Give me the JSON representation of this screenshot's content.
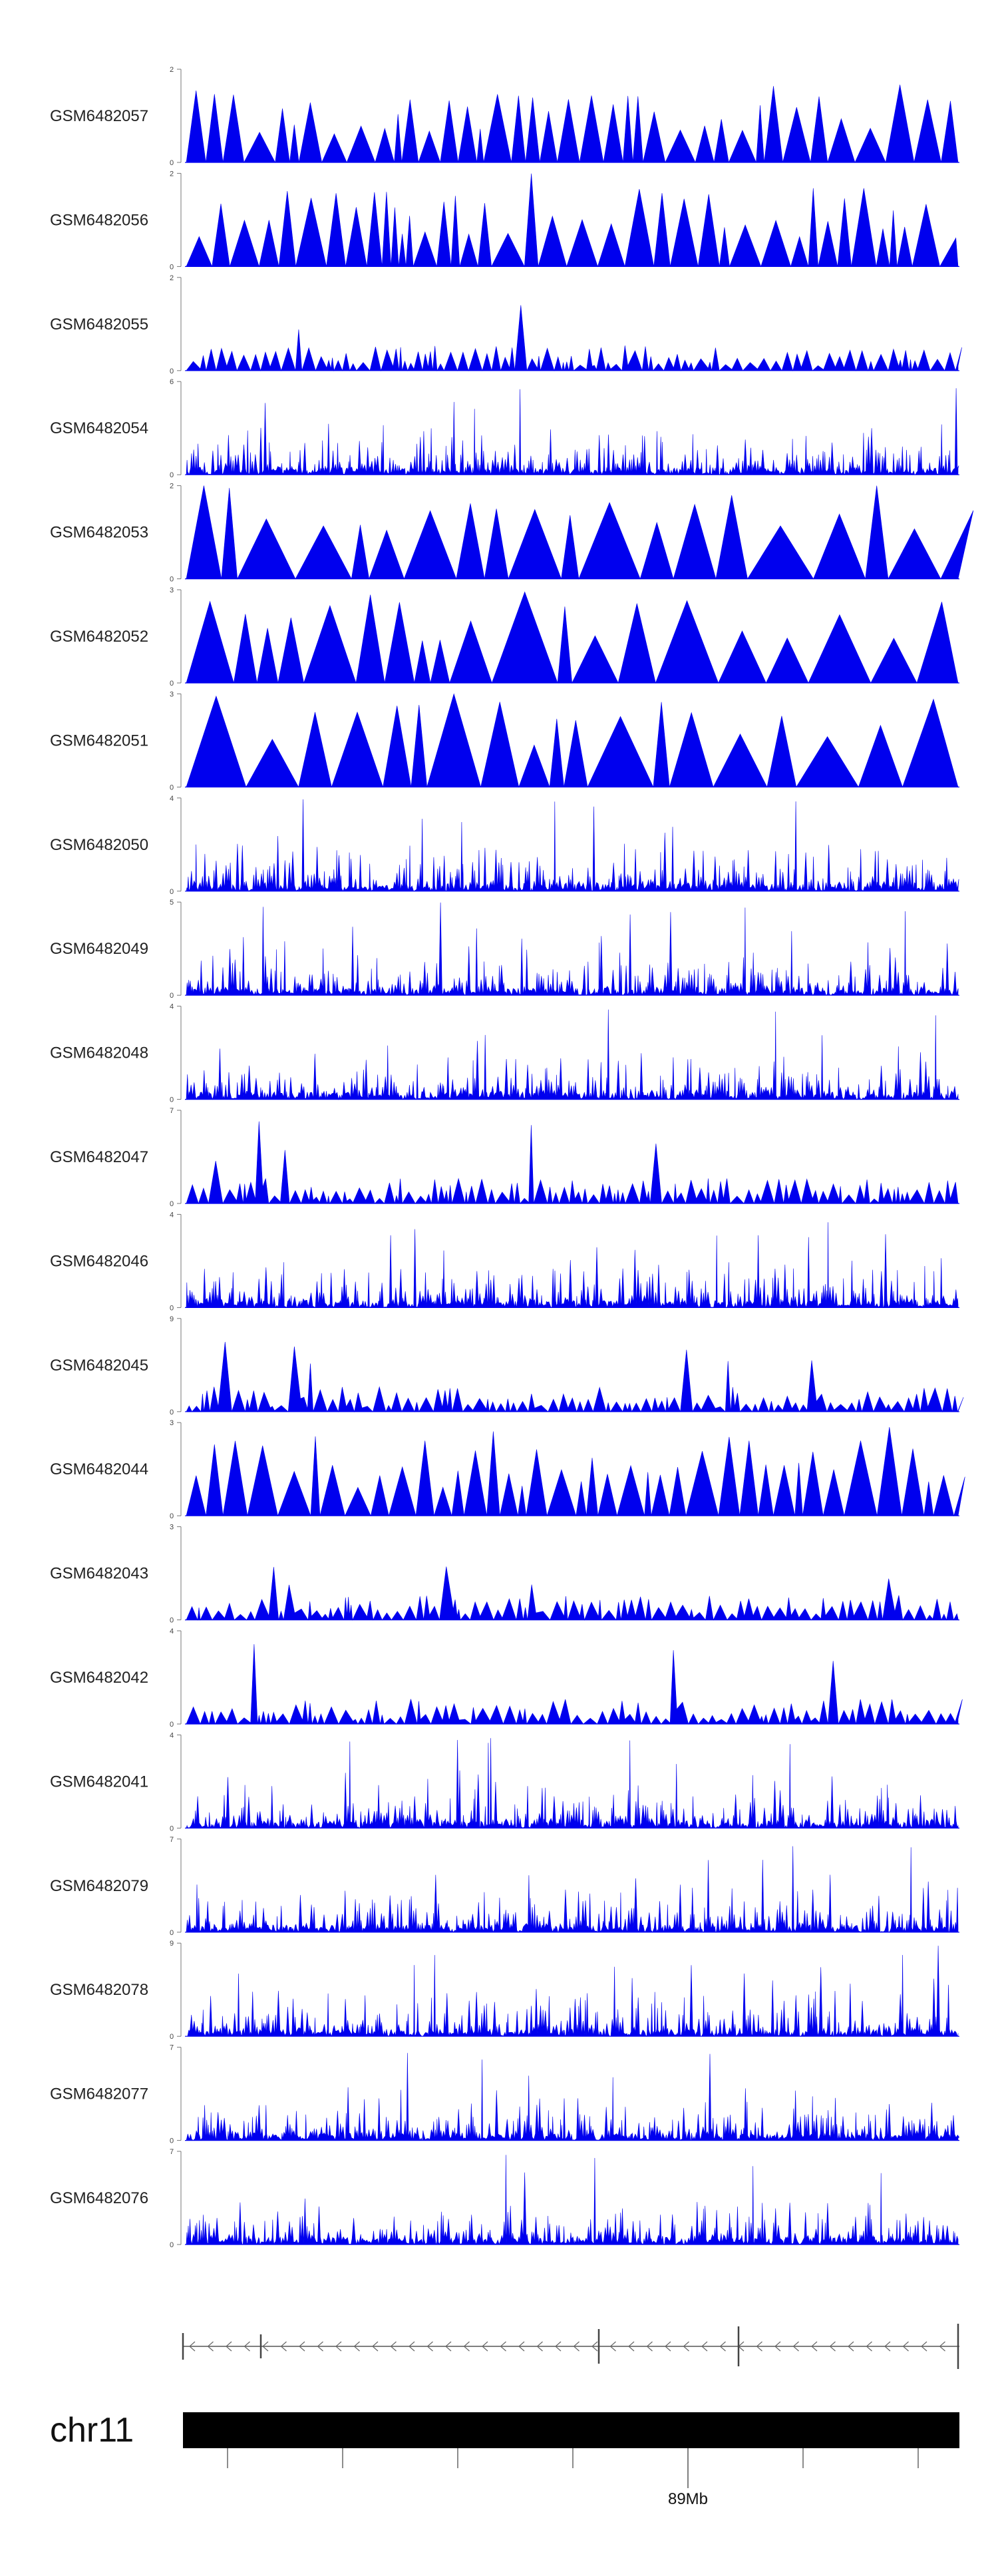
{
  "chart_data": {
    "type": "area",
    "description_title": "",
    "chromosome": "chr11",
    "coordinate_label": "89Mb",
    "color": "#0000ee",
    "tracks": [
      {
        "sample": "GSM6482057",
        "ymax": "2",
        "ymin": "0",
        "max": 2,
        "style": "sparse",
        "seed": 57
      },
      {
        "sample": "GSM6482056",
        "ymax": "2",
        "ymin": "0",
        "max": 2,
        "style": "sparse",
        "seed": 56
      },
      {
        "sample": "GSM6482055",
        "ymax": "2",
        "ymin": "0",
        "max": 2,
        "style": "medium",
        "seed": 55
      },
      {
        "sample": "GSM6482054",
        "ymax": "6",
        "ymin": "0",
        "max": 6,
        "style": "dense",
        "seed": 54
      },
      {
        "sample": "GSM6482053",
        "ymax": "2",
        "ymin": "0",
        "max": 2,
        "style": "verysparse",
        "seed": 53
      },
      {
        "sample": "GSM6482052",
        "ymax": "3",
        "ymin": "0",
        "max": 3,
        "style": "verysparse",
        "seed": 52
      },
      {
        "sample": "GSM6482051",
        "ymax": "3",
        "ymin": "0",
        "max": 3,
        "style": "verysparse",
        "seed": 51
      },
      {
        "sample": "GSM6482050",
        "ymax": "4",
        "ymin": "0",
        "max": 4,
        "style": "dense",
        "seed": 50
      },
      {
        "sample": "GSM6482049",
        "ymax": "5",
        "ymin": "0",
        "max": 5,
        "style": "dense",
        "seed": 49
      },
      {
        "sample": "GSM6482048",
        "ymax": "4",
        "ymin": "0",
        "max": 4,
        "style": "dense",
        "seed": 48
      },
      {
        "sample": "GSM6482047",
        "ymax": "7",
        "ymin": "0",
        "max": 7,
        "style": "medium",
        "seed": 47
      },
      {
        "sample": "GSM6482046",
        "ymax": "4",
        "ymin": "0",
        "max": 4,
        "style": "dense",
        "seed": 46
      },
      {
        "sample": "GSM6482045",
        "ymax": "9",
        "ymin": "0",
        "max": 9,
        "style": "medium",
        "seed": 45
      },
      {
        "sample": "GSM6482044",
        "ymax": "3",
        "ymin": "0",
        "max": 3,
        "style": "sparse",
        "seed": 44
      },
      {
        "sample": "GSM6482043",
        "ymax": "3",
        "ymin": "0",
        "max": 3,
        "style": "medium",
        "seed": 43
      },
      {
        "sample": "GSM6482042",
        "ymax": "4",
        "ymin": "0",
        "max": 4,
        "style": "medium",
        "seed": 42
      },
      {
        "sample": "GSM6482041",
        "ymax": "4",
        "ymin": "0",
        "max": 4,
        "style": "dense",
        "seed": 41
      },
      {
        "sample": "GSM6482079",
        "ymax": "7",
        "ymin": "0",
        "max": 7,
        "style": "dense",
        "seed": 79
      },
      {
        "sample": "GSM6482078",
        "ymax": "9",
        "ymin": "0",
        "max": 9,
        "style": "dense",
        "seed": 78
      },
      {
        "sample": "GSM6482077",
        "ymax": "7",
        "ymin": "0",
        "max": 7,
        "style": "dense",
        "seed": 77
      },
      {
        "sample": "GSM6482076",
        "ymax": "7",
        "ymin": "0",
        "max": 7,
        "style": "dense",
        "seed": 76
      }
    ]
  }
}
